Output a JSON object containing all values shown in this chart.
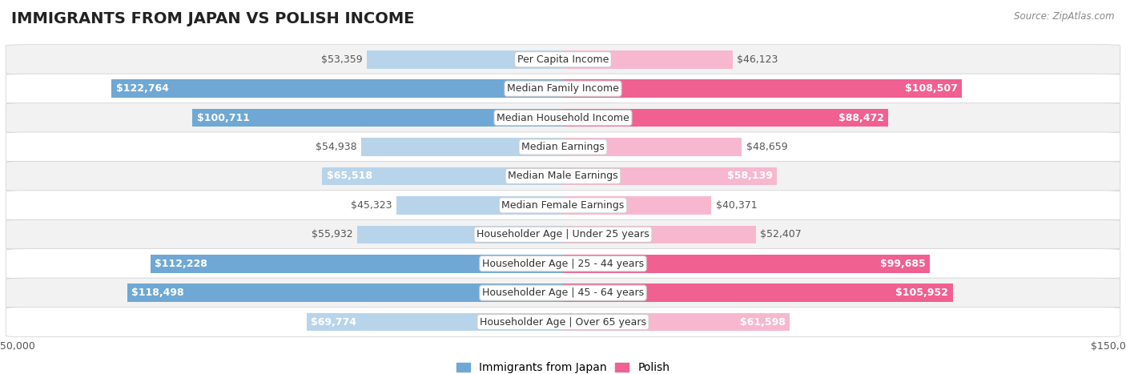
{
  "title": "IMMIGRANTS FROM JAPAN VS POLISH INCOME",
  "source": "Source: ZipAtlas.com",
  "categories": [
    "Per Capita Income",
    "Median Family Income",
    "Median Household Income",
    "Median Earnings",
    "Median Male Earnings",
    "Median Female Earnings",
    "Householder Age | Under 25 years",
    "Householder Age | 25 - 44 years",
    "Householder Age | 45 - 64 years",
    "Householder Age | Over 65 years"
  ],
  "japan_values": [
    53359,
    122764,
    100711,
    54938,
    65518,
    45323,
    55932,
    112228,
    118498,
    69774
  ],
  "polish_values": [
    46123,
    108507,
    88472,
    48659,
    58139,
    40371,
    52407,
    99685,
    105952,
    61598
  ],
  "japan_labels": [
    "$53,359",
    "$122,764",
    "$100,711",
    "$54,938",
    "$65,518",
    "$45,323",
    "$55,932",
    "$112,228",
    "$118,498",
    "$69,774"
  ],
  "polish_labels": [
    "$46,123",
    "$108,507",
    "$88,472",
    "$48,659",
    "$58,139",
    "$40,371",
    "$52,407",
    "$99,685",
    "$105,952",
    "$61,598"
  ],
  "japan_color_light": "#b8d4ea",
  "japan_color_dark": "#6fa8d4",
  "polish_color_light": "#f7b8cf",
  "polish_color_dark": "#f06090",
  "inside_label_color": "#ffffff",
  "outside_label_color": "#555555",
  "max_value": 150000,
  "inside_threshold": 75000,
  "bar_height": 0.62,
  "background_color": "#ffffff",
  "row_bg_even": "#f2f2f2",
  "row_bg_odd": "#ffffff",
  "title_fontsize": 14,
  "label_fontsize": 9,
  "axis_label_fontsize": 9,
  "legend_fontsize": 10,
  "category_fontsize": 9
}
